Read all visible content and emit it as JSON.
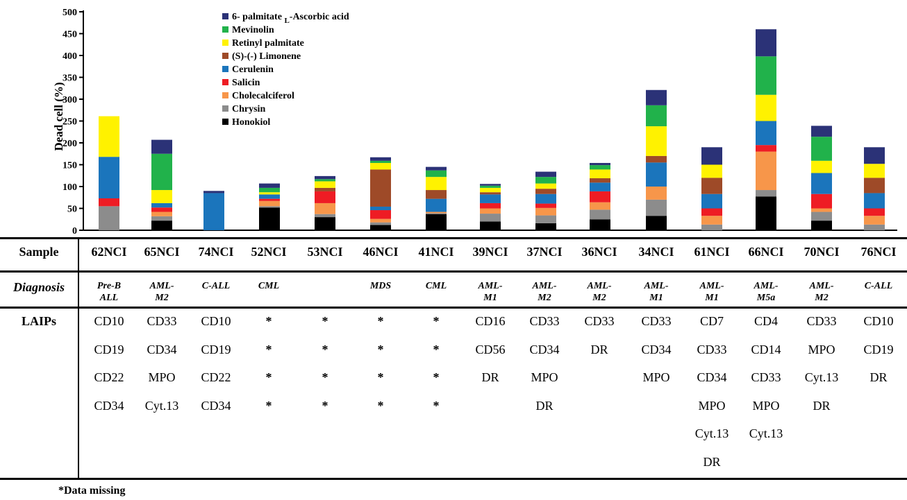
{
  "chart_data": {
    "type": "bar",
    "stacked": true,
    "ylabel": "Dead cell (%)",
    "ylim": [
      0,
      500
    ],
    "yticks": [
      0,
      50,
      100,
      150,
      200,
      250,
      300,
      350,
      400,
      450,
      500
    ],
    "categories": [
      "62NCI",
      "65NCI",
      "74NCI",
      "52NCI",
      "53NCI",
      "46NCI",
      "41NCI",
      "39NCI",
      "37NCI",
      "36NCI",
      "34NCI",
      "61NCI",
      "66NCI",
      "70NCI",
      "76NCI"
    ],
    "legend_placement": "top-left",
    "series": [
      {
        "name": "Honokiol",
        "color": "#000000",
        "values": [
          0,
          22,
          0,
          52,
          30,
          12,
          37,
          20,
          16,
          25,
          33,
          0,
          77,
          22,
          0
        ]
      },
      {
        "name": "Chrysin",
        "color": "#8c8c8c",
        "values": [
          55,
          10,
          0,
          3,
          7,
          6,
          2,
          18,
          18,
          22,
          37,
          13,
          15,
          20,
          13
        ]
      },
      {
        "name": "Cholecalciferol",
        "color": "#f7964a",
        "values": [
          0,
          10,
          0,
          12,
          25,
          8,
          3,
          12,
          17,
          17,
          30,
          20,
          88,
          8,
          20
        ]
      },
      {
        "name": "Salicin",
        "color": "#ee1c24",
        "values": [
          18,
          10,
          0,
          5,
          27,
          20,
          0,
          12,
          10,
          25,
          0,
          17,
          15,
          33,
          17
        ]
      },
      {
        "name": "Cerulenin",
        "color": "#1b75bc",
        "values": [
          95,
          10,
          85,
          10,
          0,
          8,
          30,
          20,
          22,
          20,
          55,
          33,
          55,
          48,
          35
        ]
      },
      {
        "name": "(S)-(-) Limonene",
        "color": "#9e4a28",
        "values": [
          0,
          0,
          0,
          0,
          8,
          85,
          20,
          5,
          12,
          10,
          15,
          37,
          0,
          0,
          35
        ]
      },
      {
        "name": "Retinyl palmitate",
        "color": "#fff200",
        "values": [
          93,
          30,
          0,
          5,
          15,
          15,
          30,
          10,
          12,
          20,
          68,
          30,
          60,
          28,
          32
        ]
      },
      {
        "name": "Mevinolin",
        "color": "#21b24b",
        "values": [
          0,
          83,
          0,
          10,
          5,
          5,
          15,
          5,
          15,
          10,
          48,
          0,
          88,
          55,
          0
        ]
      },
      {
        "name": "6- palmitate L-Ascorbic acid",
        "color": "#2b3277",
        "values": [
          0,
          32,
          5,
          10,
          7,
          8,
          8,
          4,
          12,
          5,
          35,
          40,
          62,
          25,
          38
        ]
      }
    ],
    "legend": [
      {
        "key": "ascorbic",
        "prefix": "6- palmitate ",
        "sub": "L",
        "suffix": "-Ascorbic acid"
      },
      {
        "key": "mevinolin",
        "text": "Mevinolin"
      },
      {
        "key": "retinyl",
        "text": "Retinyl palmitate"
      },
      {
        "key": "limonene",
        "text": "(S)-(-) Limonene"
      },
      {
        "key": "cerulenin",
        "text": "Cerulenin"
      },
      {
        "key": "salicin",
        "text": "Salicin"
      },
      {
        "key": "cholecalciferol",
        "text": "Cholecalciferol"
      },
      {
        "key": "chrysin",
        "text": "Chrysin"
      },
      {
        "key": "honokiol",
        "text": "Honokiol"
      }
    ]
  },
  "table": {
    "row_labels": {
      "sample": "Sample",
      "diagnosis": "Diagnosis",
      "laips": "LAIPs"
    },
    "diagnosis": [
      [
        "Pre-B",
        "ALL"
      ],
      [
        "AML-",
        "M2"
      ],
      [
        "C-ALL",
        ""
      ],
      [
        "CML",
        ""
      ],
      [
        "",
        ""
      ],
      [
        "MDS",
        ""
      ],
      [
        "CML",
        ""
      ],
      [
        "AML-",
        "M1"
      ],
      [
        "AML-",
        "M2"
      ],
      [
        "AML-",
        "M2"
      ],
      [
        "AML-",
        "M1"
      ],
      [
        "AML-",
        "M1"
      ],
      [
        "AML-",
        "M5a"
      ],
      [
        "AML-",
        "M2"
      ],
      [
        "C-ALL",
        ""
      ]
    ],
    "laips": [
      [
        "CD10",
        "CD19",
        "CD22",
        "CD34"
      ],
      [
        "CD33",
        "CD34",
        "MPO",
        "Cyt.13"
      ],
      [
        "CD10",
        "CD19",
        "CD22",
        "CD34"
      ],
      [
        "*",
        "*",
        "*",
        "*"
      ],
      [
        "*",
        "*",
        "*",
        "*"
      ],
      [
        "*",
        "*",
        "*",
        "*"
      ],
      [
        "*",
        "*",
        "*",
        "*"
      ],
      [
        "CD16",
        "CD56",
        "DR"
      ],
      [
        "CD33",
        "CD34",
        "MPO",
        "DR"
      ],
      [
        "CD33",
        "DR"
      ],
      [
        "CD33",
        "CD34",
        "MPO"
      ],
      [
        "CD7",
        "CD33",
        "CD34",
        "MPO",
        "Cyt.13",
        "DR"
      ],
      [
        "CD4",
        "CD14",
        "CD33",
        "MPO",
        "Cyt.13"
      ],
      [
        "CD33",
        "MPO",
        "Cyt.13",
        "DR"
      ],
      [
        "CD10",
        "CD19",
        "DR"
      ]
    ]
  },
  "footnote": "*Data missing"
}
